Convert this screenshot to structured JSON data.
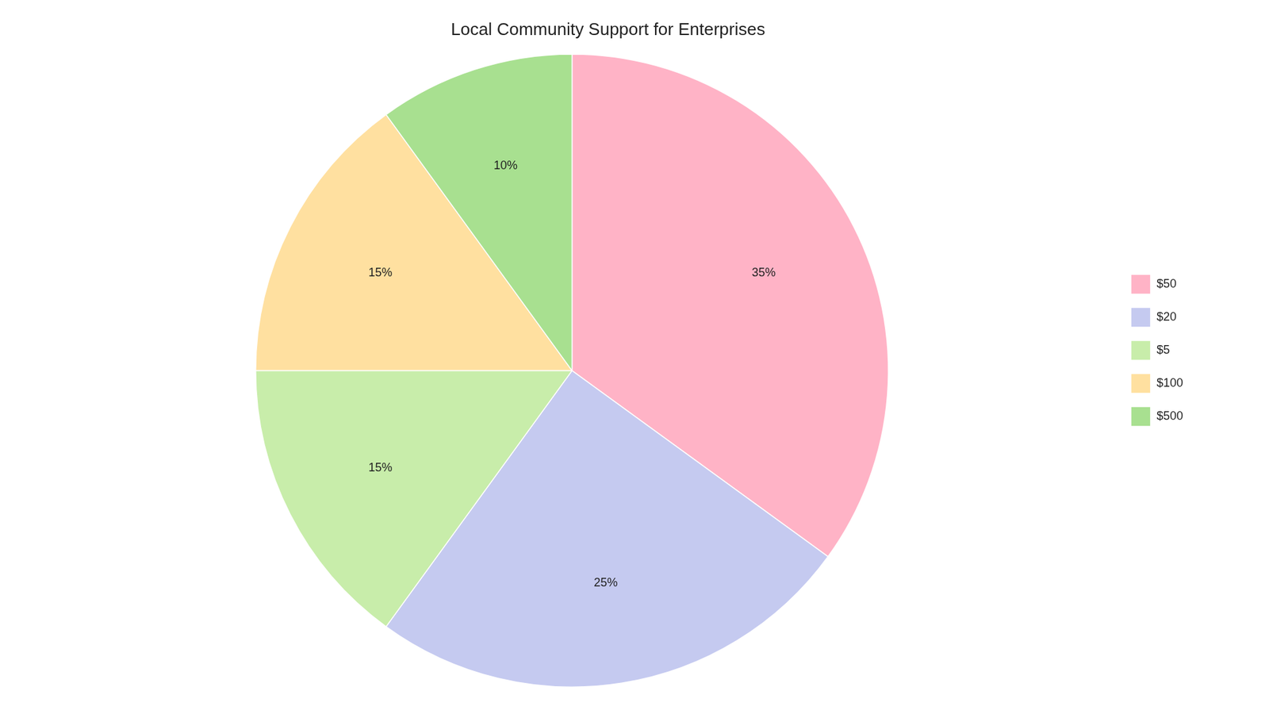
{
  "chart_data": {
    "type": "pie",
    "title": "Local Community Support for Enterprises",
    "categories": [
      "$50",
      "$20",
      "$5",
      "$100",
      "$500"
    ],
    "values": [
      35,
      25,
      15,
      15,
      10
    ],
    "value_labels": [
      "35%",
      "25%",
      "15%",
      "15%",
      "10%"
    ],
    "colors": [
      "#FFB3C6",
      "#C5CAF0",
      "#C8EDAA",
      "#FFE0A0",
      "#A8E090"
    ],
    "data_labels": true,
    "legend": "right"
  }
}
